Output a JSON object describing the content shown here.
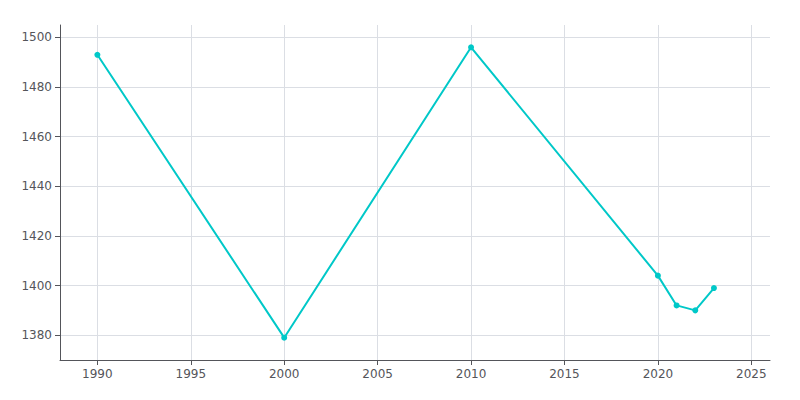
{
  "chart_data": {
    "type": "line",
    "x": [
      1990,
      2000,
      2010,
      2020,
      2021,
      2022,
      2023
    ],
    "values": [
      1493,
      1379,
      1496,
      1404,
      1392,
      1390,
      1399
    ],
    "color": "#00C8C8",
    "marker": "circle",
    "xlim": [
      1988,
      2026
    ],
    "ylim": [
      1370,
      1505
    ],
    "xticks": [
      1990,
      1995,
      2000,
      2005,
      2010,
      2015,
      2020,
      2025
    ],
    "yticks": [
      1380,
      1400,
      1420,
      1440,
      1460,
      1480,
      1500
    ],
    "grid": true
  }
}
